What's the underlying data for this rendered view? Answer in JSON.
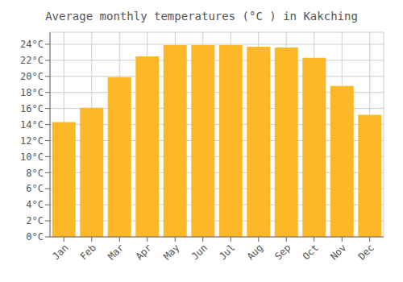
{
  "chart_data": {
    "type": "bar",
    "title": "Average monthly temperatures (°C ) in Kakching",
    "categories": [
      "Jan",
      "Feb",
      "Mar",
      "Apr",
      "May",
      "Jun",
      "Jul",
      "Aug",
      "Sep",
      "Oct",
      "Nov",
      "Dec"
    ],
    "values": [
      14.3,
      16.1,
      19.9,
      22.5,
      23.9,
      23.9,
      23.9,
      23.7,
      23.6,
      22.3,
      18.8,
      15.2
    ],
    "color": "#FDB827",
    "ylim": [
      0,
      25.5
    ],
    "yticks": [
      {
        "value": 0,
        "label": "0°C"
      },
      {
        "value": 2,
        "label": "2°C"
      },
      {
        "value": 4,
        "label": "4°C"
      },
      {
        "value": 6,
        "label": "6°C"
      },
      {
        "value": 8,
        "label": "8°C"
      },
      {
        "value": 10,
        "label": "10°C"
      },
      {
        "value": 12,
        "label": "12°C"
      },
      {
        "value": 14,
        "label": "14°C"
      },
      {
        "value": 16,
        "label": "16°C"
      },
      {
        "value": 18,
        "label": "18°C"
      },
      {
        "value": 20,
        "label": "20°C"
      },
      {
        "value": 22,
        "label": "22°C"
      },
      {
        "value": 24,
        "label": "24°C"
      }
    ],
    "grid": true
  }
}
